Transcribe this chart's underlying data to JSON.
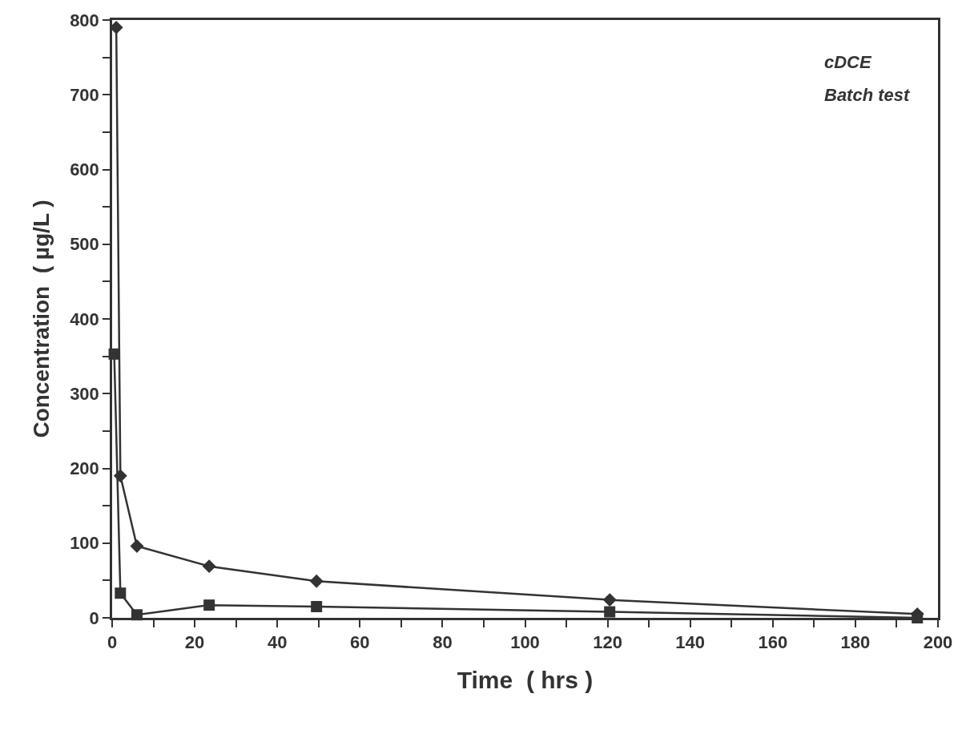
{
  "chart_data": {
    "type": "line",
    "xlabel": "Time  ( hrs )",
    "ylabel": "Concentration  ( µg/L )",
    "annotations": [
      "cDCE",
      "Batch test"
    ],
    "xlim": [
      0,
      200
    ],
    "ylim": [
      0,
      800
    ],
    "xticks": [
      0,
      {
        "value": 10,
        "label": null
      },
      20,
      {
        "value": 30,
        "label": null
      },
      40,
      {
        "value": 50,
        "label": null
      },
      60,
      {
        "value": 70,
        "label": null
      },
      80,
      {
        "value": 90,
        "label": null
      },
      100,
      {
        "value": 110,
        "label": null
      },
      120,
      {
        "value": 130,
        "label": null
      },
      140,
      {
        "value": 150,
        "label": null
      },
      160,
      {
        "value": 170,
        "label": null
      },
      180,
      {
        "value": 190,
        "label": null
      },
      200
    ],
    "yticks": [
      0,
      {
        "value": 50,
        "label": null
      },
      100,
      {
        "value": 150,
        "label": null
      },
      200,
      {
        "value": 250,
        "label": null
      },
      300,
      {
        "value": 350,
        "label": null
      },
      400,
      {
        "value": 450,
        "label": null
      },
      500,
      {
        "value": 550,
        "label": null
      },
      600,
      {
        "value": 650,
        "label": null
      },
      700,
      {
        "value": 750,
        "label": null
      },
      800
    ],
    "line_style": "solid",
    "series": [
      {
        "color": "#333333",
        "marker": "diamond",
        "x": [
          1,
          2,
          6,
          23.5,
          49.5,
          120.5,
          195
        ],
        "values": [
          790,
          190,
          96,
          69,
          49,
          24,
          5
        ]
      },
      {
        "color": "#333333",
        "marker": "square",
        "x": [
          0.5,
          2,
          6,
          23.5,
          49.5,
          120.5,
          195
        ],
        "values": [
          353,
          33,
          4,
          17,
          15,
          8,
          0
        ]
      }
    ]
  }
}
